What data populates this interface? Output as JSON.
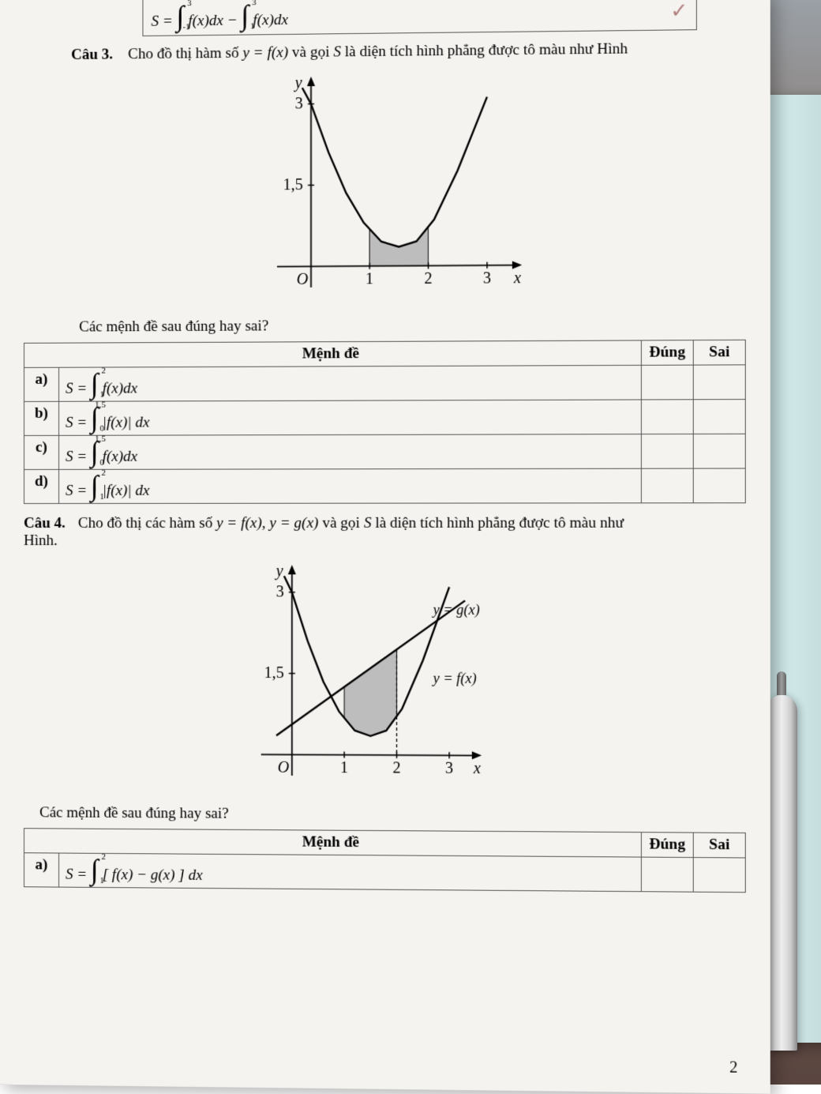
{
  "top_formula_html": "S = <span class='integral'><span class='int-sym'>∫<span class='int-up'>3</span><span class='int-lo'>-1</span></span></span> f(x)dx − <span class='integral'><span class='int-sym'>∫<span class='int-up'>3</span><span class='int-lo'>1</span></span></span> f(x)dx",
  "checkmark": "✓",
  "q3": {
    "label": "Câu 3.",
    "text_html": "Cho đồ thị hàm số <span class='math'>y = f(x)</span> và gọi <span class='math'>S</span> là diện tích hình phẳng được tô màu như Hình",
    "sub_question": "Các mệnh đề sau đúng hay sai?",
    "header_menhde": "Mệnh đề",
    "header_dung": "Đúng",
    "header_sai": "Sai",
    "rows": [
      {
        "label": "a)",
        "html": "S = <span class='integral'><span class='int-sym'>∫<span class='int-up'>2</span><span class='int-lo'>1</span></span></span> f(x)dx"
      },
      {
        "label": "b)",
        "html": "S = <span class='integral'><span class='int-sym'>∫<span class='int-up'>1,5</span><span class='int-lo'>0</span></span></span> |f(x)| dx"
      },
      {
        "label": "c)",
        "html": "S = <span class='integral'><span class='int-sym'>∫<span class='int-up'>1,5</span><span class='int-lo'>0</span></span></span> f(x)dx"
      },
      {
        "label": "d)",
        "html": "S = <span class='integral'><span class='int-sym'>∫<span class='int-up'>2</span><span class='int-lo'>1</span></span></span> |f(x)| dx"
      }
    ],
    "chart": {
      "xlim": [
        -0.5,
        3.4
      ],
      "ylim": [
        -0.3,
        3.3
      ],
      "xticks": [
        1,
        2,
        3
      ],
      "yticks": [
        1.5,
        3
      ],
      "ytick_labels": [
        "1,5",
        "3"
      ],
      "curve_points": [
        [
          -0.15,
          3.3
        ],
        [
          0,
          3
        ],
        [
          0.3,
          2.1
        ],
        [
          0.6,
          1.35
        ],
        [
          0.9,
          0.8
        ],
        [
          1.2,
          0.45
        ],
        [
          1.5,
          0.35
        ],
        [
          1.8,
          0.45
        ],
        [
          2.1,
          0.85
        ],
        [
          2.5,
          1.75
        ],
        [
          3,
          3.1
        ]
      ],
      "shade_x": [
        1,
        2
      ],
      "colors": {
        "axis": "#000",
        "curve": "#000",
        "shade": "#bdbdbd",
        "tick": "#000",
        "label": "#000"
      },
      "stroke_width": 1.8,
      "curve_width": 2.4
    }
  },
  "q4": {
    "label": "Câu 4.",
    "text_html": "Cho đồ thị các hàm số <span class='math'>y = f(x), y = g(x)</span> và gọi <span class='math'>S</span> là diện tích hình phẳng được tô màu như",
    "hinh": "Hình.",
    "sub_question": "Các mệnh đề sau đúng hay sai?",
    "header_menhde": "Mệnh đề",
    "header_dung": "Đúng",
    "header_sai": "Sai",
    "rows": [
      {
        "label": "a)",
        "html": "S = <span class='integral'><span class='int-sym'>∫<span class='int-up'>2</span><span class='int-lo'>1</span></span></span> [ f(x) − g(x) ] dx"
      }
    ],
    "chart": {
      "xlim": [
        -0.5,
        3.4
      ],
      "ylim": [
        -0.3,
        3.3
      ],
      "xticks": [
        1,
        2,
        3
      ],
      "yticks": [
        1.5,
        3
      ],
      "ytick_labels": [
        "1,5",
        "3"
      ],
      "curve_f_points": [
        [
          -0.15,
          3.3
        ],
        [
          0,
          3
        ],
        [
          0.3,
          2.1
        ],
        [
          0.6,
          1.35
        ],
        [
          0.9,
          0.8
        ],
        [
          1.2,
          0.45
        ],
        [
          1.5,
          0.35
        ],
        [
          1.8,
          0.45
        ],
        [
          2.1,
          0.85
        ],
        [
          2.5,
          1.75
        ],
        [
          3,
          3.1
        ]
      ],
      "line_g_points": [
        [
          -0.3,
          0.35
        ],
        [
          3.3,
          2.85
        ]
      ],
      "label_g": "y = g(x)",
      "label_f": "y = f(x)",
      "shade_x": [
        1,
        2
      ],
      "dashed_x": 2,
      "colors": {
        "axis": "#000",
        "curve": "#000",
        "line": "#000",
        "shade": "#bdbdbd",
        "dash": "#000"
      },
      "stroke_width": 1.8,
      "curve_width": 2.4
    }
  },
  "page_number": "2"
}
